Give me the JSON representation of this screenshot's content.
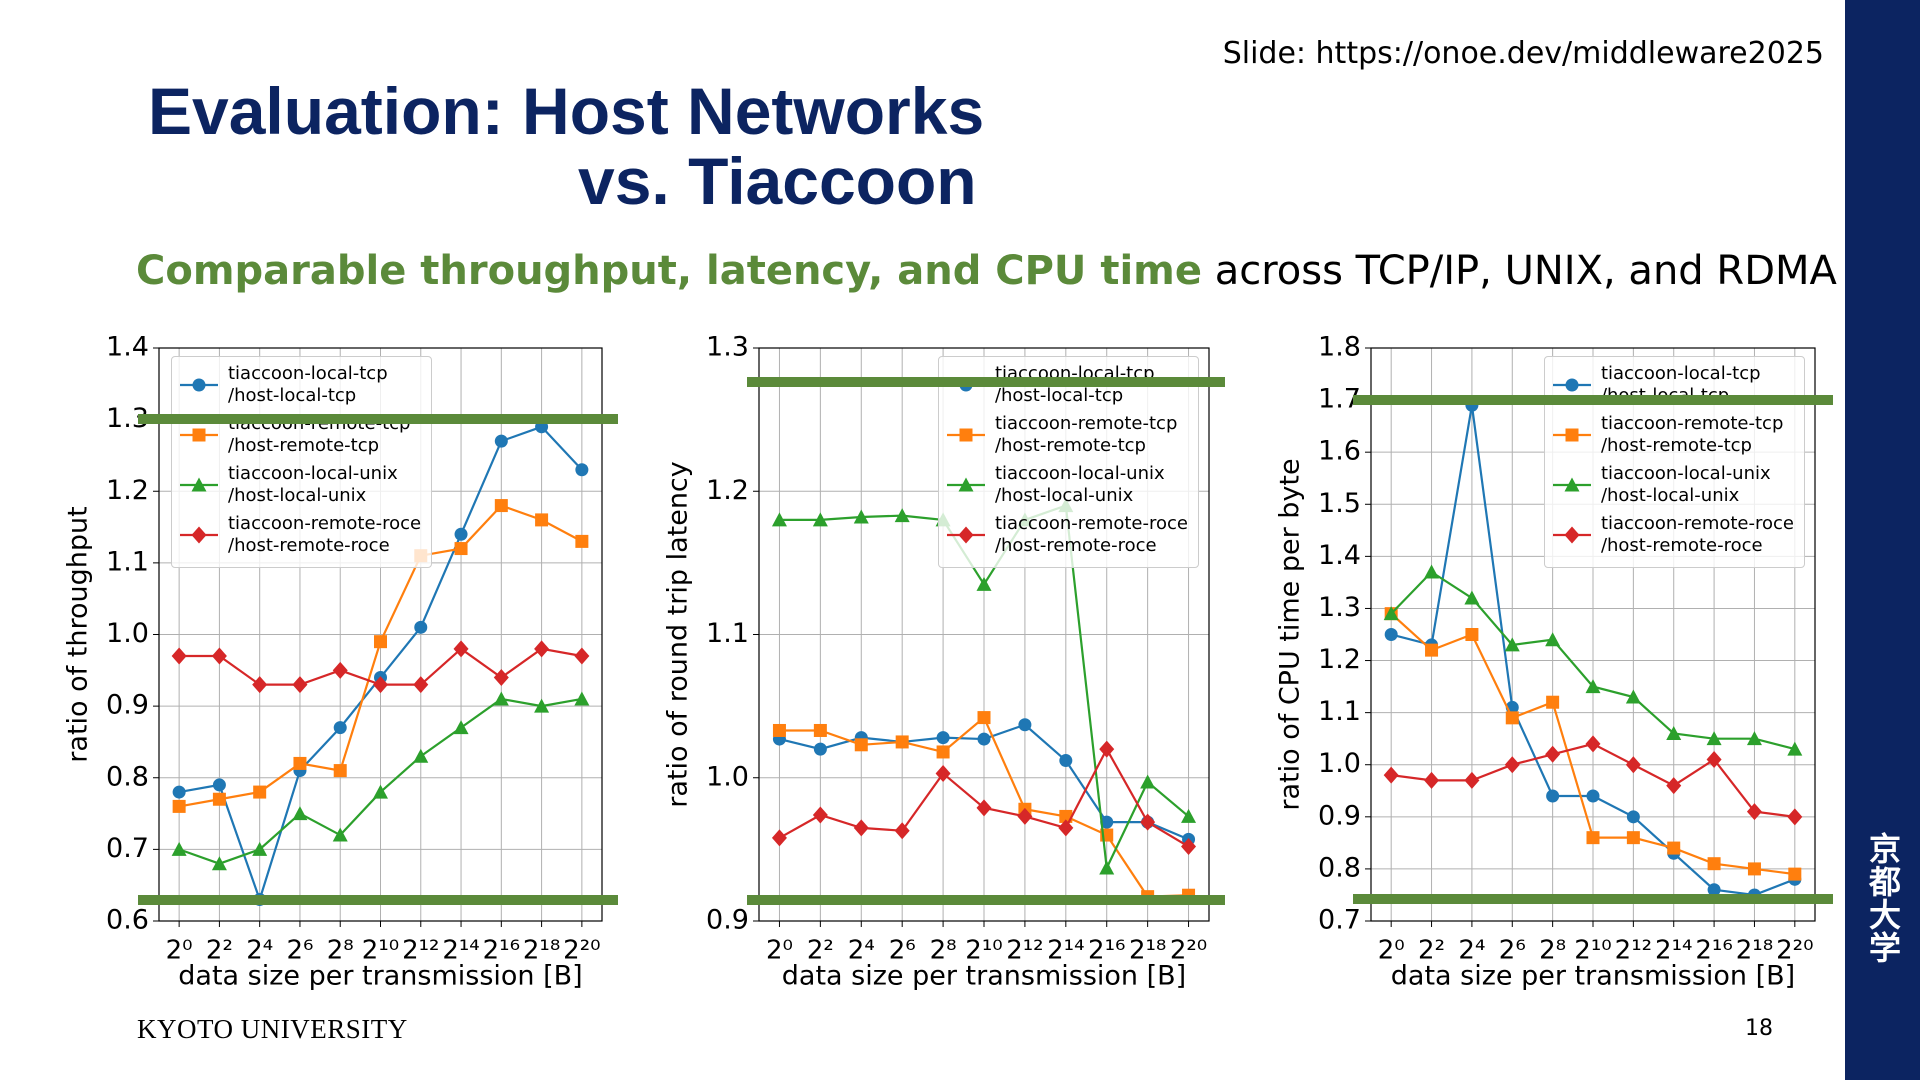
{
  "slide": {
    "link": "Slide: https://onoe.dev/middleware2025",
    "title": "Evaluation: Host Networks",
    "title_line2": "vs. Tiaccoon",
    "subtitle_highlight": "Comparable throughput, latency, and CPU time",
    "subtitle_rest": "across TCP/IP, UNIX, and RDMA",
    "footer": "KYOTO UNIVERSITY",
    "page_number": "18",
    "side_mark": "京都大学"
  },
  "chart_data": [
    {
      "type": "line",
      "xlabel": "data size per transmission [B]",
      "ylabel": "ratio of throughput",
      "x": [
        1,
        4,
        16,
        64,
        256,
        1024,
        4096,
        16384,
        65536,
        262144,
        1048576
      ],
      "xscale": "log2",
      "xlim": [
        0.5,
        2097152
      ],
      "xticks": [
        {
          "value": 1,
          "label": "2⁰"
        },
        {
          "value": 4,
          "label": "2²"
        },
        {
          "value": 16,
          "label": "2⁴"
        },
        {
          "value": 64,
          "label": "2⁶"
        },
        {
          "value": 256,
          "label": "2⁸"
        },
        {
          "value": 1024,
          "label": "2¹⁰"
        },
        {
          "value": 4096,
          "label": "2¹²"
        },
        {
          "value": 16384,
          "label": "2¹⁴"
        },
        {
          "value": 65536,
          "label": "2¹⁶"
        },
        {
          "value": 262144,
          "label": "2¹⁸"
        },
        {
          "value": 1048576,
          "label": "2²⁰"
        }
      ],
      "ylim": [
        0.6,
        1.4
      ],
      "yticks": [
        0.6,
        0.7,
        0.8,
        0.9,
        {
          "value": 1,
          "label": "1.0"
        },
        1.1,
        1.2,
        1.3,
        1.4
      ],
      "grid": true,
      "legend": "upper left",
      "series": [
        {
          "name": "tiaccoon-local-tcp\n/host-local-tcp",
          "color": "#1f77b4",
          "marker": "circle",
          "values": [
            0.78,
            0.79,
            0.63,
            0.81,
            0.87,
            0.94,
            1.01,
            1.14,
            1.27,
            1.29,
            1.23
          ]
        },
        {
          "name": "tiaccoon-remote-tcp\n/host-remote-tcp",
          "color": "#ff7f0e",
          "marker": "square",
          "values": [
            0.76,
            0.77,
            0.78,
            0.82,
            0.81,
            0.99,
            1.11,
            1.12,
            1.18,
            1.16,
            1.13
          ]
        },
        {
          "name": "tiaccoon-local-unix\n/host-local-unix",
          "color": "#2ca02c",
          "marker": "triangle",
          "values": [
            0.7,
            0.68,
            0.7,
            0.75,
            0.72,
            0.78,
            0.83,
            0.87,
            0.91,
            0.9,
            0.91
          ]
        },
        {
          "name": "tiaccoon-remote-roce\n/host-remote-roce",
          "color": "#d62728",
          "marker": "diamond",
          "values": [
            0.97,
            0.97,
            0.93,
            0.93,
            0.95,
            0.93,
            0.93,
            0.98,
            0.94,
            0.98,
            0.97
          ]
        }
      ]
    },
    {
      "type": "line",
      "xlabel": "data size per transmission [B]",
      "ylabel": "ratio of round trip latency",
      "x": [
        1,
        4,
        16,
        64,
        256,
        1024,
        4096,
        16384,
        65536,
        262144,
        1048576
      ],
      "xscale": "log2",
      "xlim": [
        0.5,
        2097152
      ],
      "xticks": [
        {
          "value": 1,
          "label": "2⁰"
        },
        {
          "value": 4,
          "label": "2²"
        },
        {
          "value": 16,
          "label": "2⁴"
        },
        {
          "value": 64,
          "label": "2⁶"
        },
        {
          "value": 256,
          "label": "2⁸"
        },
        {
          "value": 1024,
          "label": "2¹⁰"
        },
        {
          "value": 4096,
          "label": "2¹²"
        },
        {
          "value": 16384,
          "label": "2¹⁴"
        },
        {
          "value": 65536,
          "label": "2¹⁶"
        },
        {
          "value": 262144,
          "label": "2¹⁸"
        },
        {
          "value": 1048576,
          "label": "2²⁰"
        }
      ],
      "ylim": [
        0.9,
        1.3
      ],
      "yticks": [
        0.9,
        {
          "value": 1,
          "label": "1.0"
        },
        1.1,
        1.2,
        1.3
      ],
      "grid": true,
      "legend": "upper right",
      "series": [
        {
          "name": "tiaccoon-local-tcp\n/host-local-tcp",
          "color": "#1f77b4",
          "marker": "circle",
          "values": [
            1.027,
            1.02,
            1.028,
            1.025,
            1.028,
            1.027,
            1.037,
            1.012,
            0.969,
            0.969,
            0.957
          ]
        },
        {
          "name": "tiaccoon-remote-tcp\n/host-remote-tcp",
          "color": "#ff7f0e",
          "marker": "square",
          "values": [
            1.033,
            1.033,
            1.023,
            1.025,
            1.018,
            1.042,
            0.978,
            0.973,
            0.96,
            0.917,
            0.918
          ]
        },
        {
          "name": "tiaccoon-local-unix\n/host-local-unix",
          "color": "#2ca02c",
          "marker": "triangle",
          "values": [
            1.18,
            1.18,
            1.182,
            1.183,
            1.18,
            1.135,
            1.18,
            1.19,
            0.937,
            0.997,
            0.973
          ]
        },
        {
          "name": "tiaccoon-remote-roce\n/host-remote-roce",
          "color": "#d62728",
          "marker": "diamond",
          "values": [
            0.958,
            0.974,
            0.965,
            0.963,
            1.003,
            0.979,
            0.973,
            0.965,
            1.02,
            0.969,
            0.952
          ]
        }
      ]
    },
    {
      "type": "line",
      "xlabel": "data size per transmission [B]",
      "ylabel": "ratio of CPU time per byte",
      "x": [
        1,
        4,
        16,
        64,
        256,
        1024,
        4096,
        16384,
        65536,
        262144,
        1048576
      ],
      "xscale": "log2",
      "xlim": [
        0.5,
        2097152
      ],
      "xticks": [
        {
          "value": 1,
          "label": "2⁰"
        },
        {
          "value": 4,
          "label": "2²"
        },
        {
          "value": 16,
          "label": "2⁴"
        },
        {
          "value": 64,
          "label": "2⁶"
        },
        {
          "value": 256,
          "label": "2⁸"
        },
        {
          "value": 1024,
          "label": "2¹⁰"
        },
        {
          "value": 4096,
          "label": "2¹²"
        },
        {
          "value": 16384,
          "label": "2¹⁴"
        },
        {
          "value": 65536,
          "label": "2¹⁶"
        },
        {
          "value": 262144,
          "label": "2¹⁸"
        },
        {
          "value": 1048576,
          "label": "2²⁰"
        }
      ],
      "ylim": [
        0.7,
        1.8
      ],
      "yticks": [
        0.7,
        0.8,
        0.9,
        {
          "value": 1,
          "label": "1.0"
        },
        1.1,
        1.2,
        1.3,
        1.4,
        1.5,
        1.6,
        1.7,
        1.8
      ],
      "grid": true,
      "legend": "upper right",
      "series": [
        {
          "name": "tiaccoon-local-tcp\n/host-local-tcp",
          "color": "#1f77b4",
          "marker": "circle",
          "values": [
            1.25,
            1.23,
            1.69,
            1.11,
            0.94,
            0.94,
            0.9,
            0.83,
            0.76,
            0.75,
            0.78
          ]
        },
        {
          "name": "tiaccoon-remote-tcp\n/host-remote-tcp",
          "color": "#ff7f0e",
          "marker": "square",
          "values": [
            1.29,
            1.22,
            1.25,
            1.09,
            1.12,
            0.86,
            0.86,
            0.84,
            0.81,
            0.8,
            0.79
          ]
        },
        {
          "name": "tiaccoon-local-unix\n/host-local-unix",
          "color": "#2ca02c",
          "marker": "triangle",
          "values": [
            1.29,
            1.37,
            1.32,
            1.23,
            1.24,
            1.15,
            1.13,
            1.06,
            1.05,
            1.05,
            1.03
          ]
        },
        {
          "name": "tiaccoon-remote-roce\n/host-remote-roce",
          "color": "#d62728",
          "marker": "diamond",
          "values": [
            0.98,
            0.97,
            0.97,
            1.0,
            1.02,
            1.04,
            1.0,
            0.96,
            1.01,
            0.91,
            0.9
          ]
        }
      ]
    }
  ]
}
